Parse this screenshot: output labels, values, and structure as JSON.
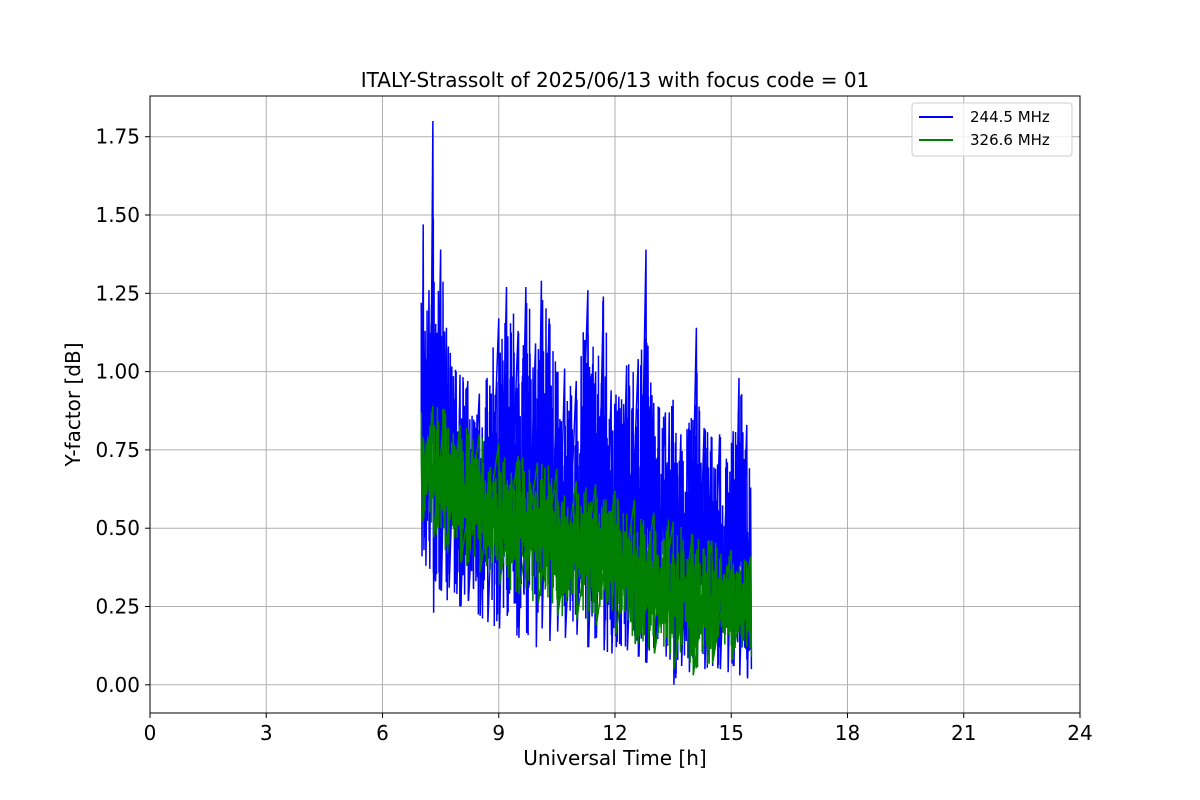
{
  "chart_data": {
    "type": "line",
    "title": "ITALY-Strassolt of 2025/06/13 with focus code = 01",
    "xlabel": "Universal Time [h]",
    "ylabel": "Y-factor [dB]",
    "xlim": [
      0,
      24
    ],
    "ylim": [
      -0.09,
      1.88
    ],
    "x_ticks": [
      0,
      3,
      6,
      9,
      12,
      15,
      18,
      21,
      24
    ],
    "x_tick_labels": [
      "0",
      "3",
      "6",
      "9",
      "12",
      "15",
      "18",
      "21",
      "24"
    ],
    "y_ticks": [
      0.0,
      0.25,
      0.5,
      0.75,
      1.0,
      1.25,
      1.5,
      1.75
    ],
    "y_tick_labels": [
      "0.00",
      "0.25",
      "0.50",
      "0.75",
      "1.00",
      "1.25",
      "1.50",
      "1.75"
    ],
    "grid": true,
    "legend_position": "top-right",
    "series": [
      {
        "name": "244.5 MHz",
        "color": "#0000ff",
        "x": [
          7.0,
          7.05,
          7.1,
          7.2,
          7.3,
          7.35,
          7.5,
          7.65,
          7.7,
          7.9,
          8.0,
          8.2,
          8.5,
          8.7,
          9.0,
          9.2,
          9.5,
          9.7,
          9.95,
          10.1,
          10.3,
          10.5,
          10.7,
          11.0,
          11.3,
          11.5,
          11.7,
          11.9,
          12.1,
          12.3,
          12.6,
          12.8,
          13.0,
          13.3,
          13.4,
          13.5,
          13.7,
          13.9,
          14.1,
          14.3,
          14.5,
          14.7,
          14.9,
          15.05,
          15.2,
          15.4,
          15.5
        ],
        "min": [
          0.41,
          0.43,
          0.38,
          0.37,
          0.23,
          0.33,
          0.3,
          0.27,
          0.31,
          0.29,
          0.25,
          0.27,
          0.22,
          0.2,
          0.18,
          0.22,
          0.15,
          0.17,
          0.12,
          0.18,
          0.14,
          0.17,
          0.15,
          0.16,
          0.12,
          0.15,
          0.11,
          0.1,
          0.13,
          0.11,
          0.09,
          0.07,
          0.1,
          0.09,
          0.08,
          0.0,
          0.06,
          0.04,
          0.07,
          0.05,
          0.06,
          0.05,
          0.04,
          0.06,
          0.03,
          0.02,
          0.05
        ],
        "max": [
          1.22,
          1.47,
          1.13,
          1.26,
          1.8,
          1.12,
          1.39,
          1.14,
          1.08,
          1.0,
          0.99,
          0.97,
          0.93,
          0.98,
          1.17,
          1.27,
          1.13,
          1.27,
          1.09,
          1.29,
          1.17,
          1.0,
          1.01,
          0.97,
          1.26,
          1.0,
          1.24,
          0.94,
          0.92,
          1.02,
          1.04,
          1.39,
          0.9,
          0.87,
          0.87,
          0.91,
          0.8,
          0.82,
          1.14,
          0.82,
          0.79,
          0.8,
          0.71,
          0.81,
          0.98,
          0.83,
          0.63
        ]
      },
      {
        "name": "326.6 MHz",
        "color": "#008000",
        "x": [
          7.0,
          7.3,
          7.6,
          8.0,
          8.5,
          9.0,
          9.5,
          10.0,
          10.5,
          11.0,
          11.5,
          12.0,
          12.5,
          13.0,
          13.5,
          14.0,
          14.5,
          15.0,
          15.5
        ],
        "min": [
          0.52,
          0.47,
          0.43,
          0.39,
          0.36,
          0.32,
          0.29,
          0.26,
          0.22,
          0.21,
          0.19,
          0.16,
          0.13,
          0.1,
          0.05,
          0.03,
          0.07,
          0.08,
          0.09
        ],
        "max": [
          0.87,
          0.89,
          0.88,
          0.83,
          0.8,
          0.77,
          0.73,
          0.71,
          0.69,
          0.65,
          0.64,
          0.62,
          0.59,
          0.55,
          0.52,
          0.48,
          0.46,
          0.43,
          0.41
        ]
      }
    ]
  }
}
